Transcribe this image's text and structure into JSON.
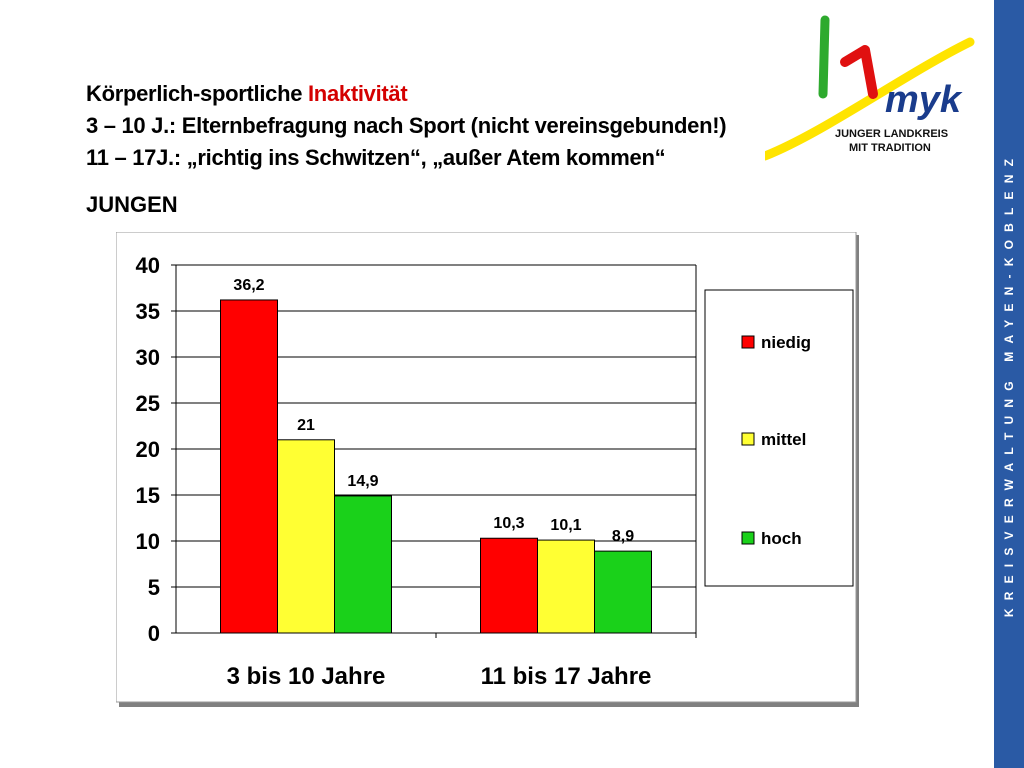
{
  "header": {
    "title_part1": "Körperlich-sportliche ",
    "title_part2": "Inaktivität",
    "line2": "3 – 10 J.: Elternbefragung nach Sport (nicht vereinsgebunden!)",
    "line3": "11 – 17J.: „richtig ins Schwitzen“, „außer Atem kommen“",
    "subgroup": "JUNGEN"
  },
  "logo": {
    "line1": "JUNGER LANDKREIS",
    "line2": "MIT TRADITION",
    "mark": "myk"
  },
  "sidebar": {
    "text": "KREISVERWALTUNG MAYEN-KOBLENZ"
  },
  "colors": {
    "accent": "#d40000",
    "sidebar": "#2a5aa5",
    "niedig": "#ff0000",
    "mittel": "#ffff33",
    "hoch": "#1ad11a"
  },
  "chart_data": {
    "type": "bar",
    "categories": [
      "3 bis 10 Jahre",
      "11 bis 17 Jahre"
    ],
    "series": [
      {
        "name": "niedig",
        "values": [
          36.2,
          10.3
        ],
        "labels": [
          "36,2",
          "10,3"
        ]
      },
      {
        "name": "mittel",
        "values": [
          21,
          10.1
        ],
        "labels": [
          "21",
          "10,1"
        ]
      },
      {
        "name": "hoch",
        "values": [
          14.9,
          8.9
        ],
        "labels": [
          "14,9",
          "8,9"
        ]
      }
    ],
    "ylim": [
      0,
      40
    ],
    "yticks": [
      "0",
      "5",
      "10",
      "15",
      "20",
      "25",
      "30",
      "35",
      "40"
    ],
    "grid": true,
    "legend": "right"
  }
}
